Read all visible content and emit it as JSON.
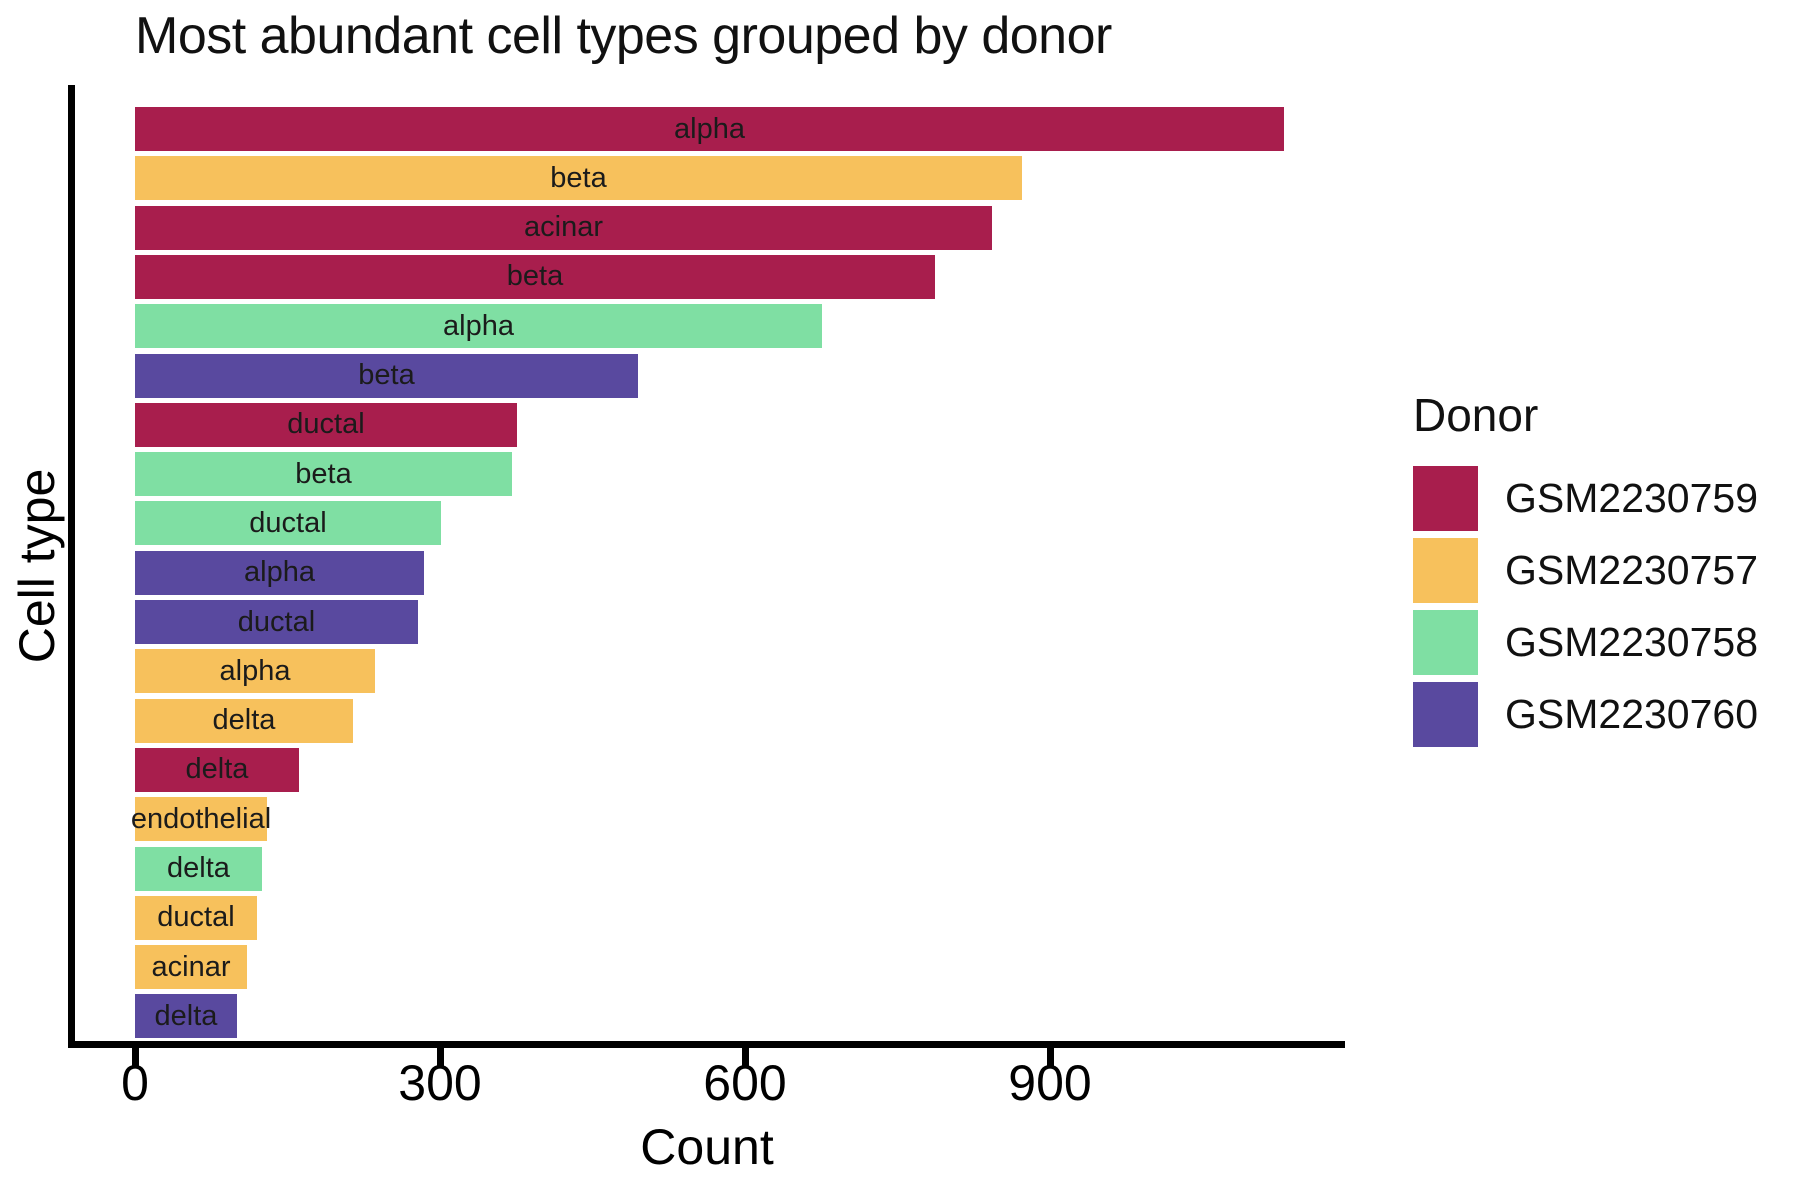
{
  "chart_data": {
    "type": "bar",
    "orientation": "horizontal",
    "title": "Most abundant cell types grouped by donor",
    "xlabel": "Count",
    "ylabel": "Cell type",
    "x_ticks": [
      0,
      300,
      600,
      900
    ],
    "xlim": [
      -62,
      1192
    ],
    "grid": false,
    "legend_title": "Donor",
    "legend_position": "right",
    "donors": [
      {
        "name": "GSM2230759",
        "color": "#A81E4D"
      },
      {
        "name": "GSM2230757",
        "color": "#F7C15C"
      },
      {
        "name": "GSM2230758",
        "color": "#7FDFA3"
      },
      {
        "name": "GSM2230760",
        "color": "#59499F"
      }
    ],
    "bars": [
      {
        "label": "alpha",
        "donor": "GSM2230759",
        "value": 1130
      },
      {
        "label": "beta",
        "donor": "GSM2230757",
        "value": 872
      },
      {
        "label": "acinar",
        "donor": "GSM2230759",
        "value": 843
      },
      {
        "label": "beta",
        "donor": "GSM2230759",
        "value": 787
      },
      {
        "label": "alpha",
        "donor": "GSM2230758",
        "value": 676
      },
      {
        "label": "beta",
        "donor": "GSM2230760",
        "value": 495
      },
      {
        "label": "ductal",
        "donor": "GSM2230759",
        "value": 376
      },
      {
        "label": "beta",
        "donor": "GSM2230758",
        "value": 371
      },
      {
        "label": "ductal",
        "donor": "GSM2230758",
        "value": 301
      },
      {
        "label": "alpha",
        "donor": "GSM2230760",
        "value": 284
      },
      {
        "label": "ductal",
        "donor": "GSM2230760",
        "value": 278
      },
      {
        "label": "alpha",
        "donor": "GSM2230757",
        "value": 236
      },
      {
        "label": "delta",
        "donor": "GSM2230757",
        "value": 214
      },
      {
        "label": "delta",
        "donor": "GSM2230759",
        "value": 161
      },
      {
        "label": "endothelial",
        "donor": "GSM2230757",
        "value": 130
      },
      {
        "label": "delta",
        "donor": "GSM2230758",
        "value": 125
      },
      {
        "label": "ductal",
        "donor": "GSM2230757",
        "value": 120
      },
      {
        "label": "acinar",
        "donor": "GSM2230757",
        "value": 110
      },
      {
        "label": "delta",
        "donor": "GSM2230760",
        "value": 100
      }
    ]
  }
}
